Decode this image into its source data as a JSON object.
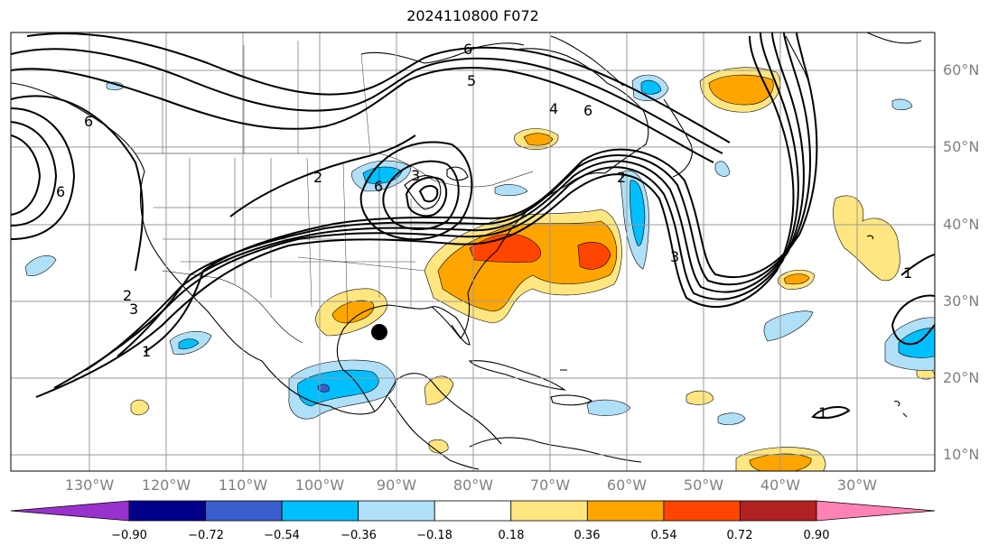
{
  "title": "2024110800 F072",
  "lat_labels": [
    "60°N",
    "50°N",
    "40°N",
    "30°N",
    "20°N",
    "10°N"
  ],
  "lon_labels": [
    "130°W",
    "120°W",
    "110°W",
    "100°W",
    "90°W",
    "80°W",
    "70°W",
    "60°W",
    "50°W",
    "40°W",
    "30°W"
  ],
  "colorbar": {
    "ticks": [
      "−0.90",
      "−0.72",
      "−0.54",
      "−0.36",
      "−0.18",
      "0.18",
      "0.36",
      "0.54",
      "0.72",
      "0.90"
    ],
    "colors": [
      "#9932cc",
      "#00008b",
      "#3a5fcd",
      "#00bfff",
      "#b0e0f8",
      "#ffffff",
      "#ffe680",
      "#ffa500",
      "#ff4500",
      "#b22222",
      "#ff82b4"
    ]
  },
  "contour_labels": [
    "6",
    "5",
    "4",
    "6",
    "2",
    "6",
    "2",
    "3",
    "2",
    "3",
    "1",
    "1",
    "3",
    "1",
    "6",
    "6"
  ],
  "colors": {
    "outline": "#000000",
    "grid": "#9a9a9a",
    "label": "#808080"
  }
}
